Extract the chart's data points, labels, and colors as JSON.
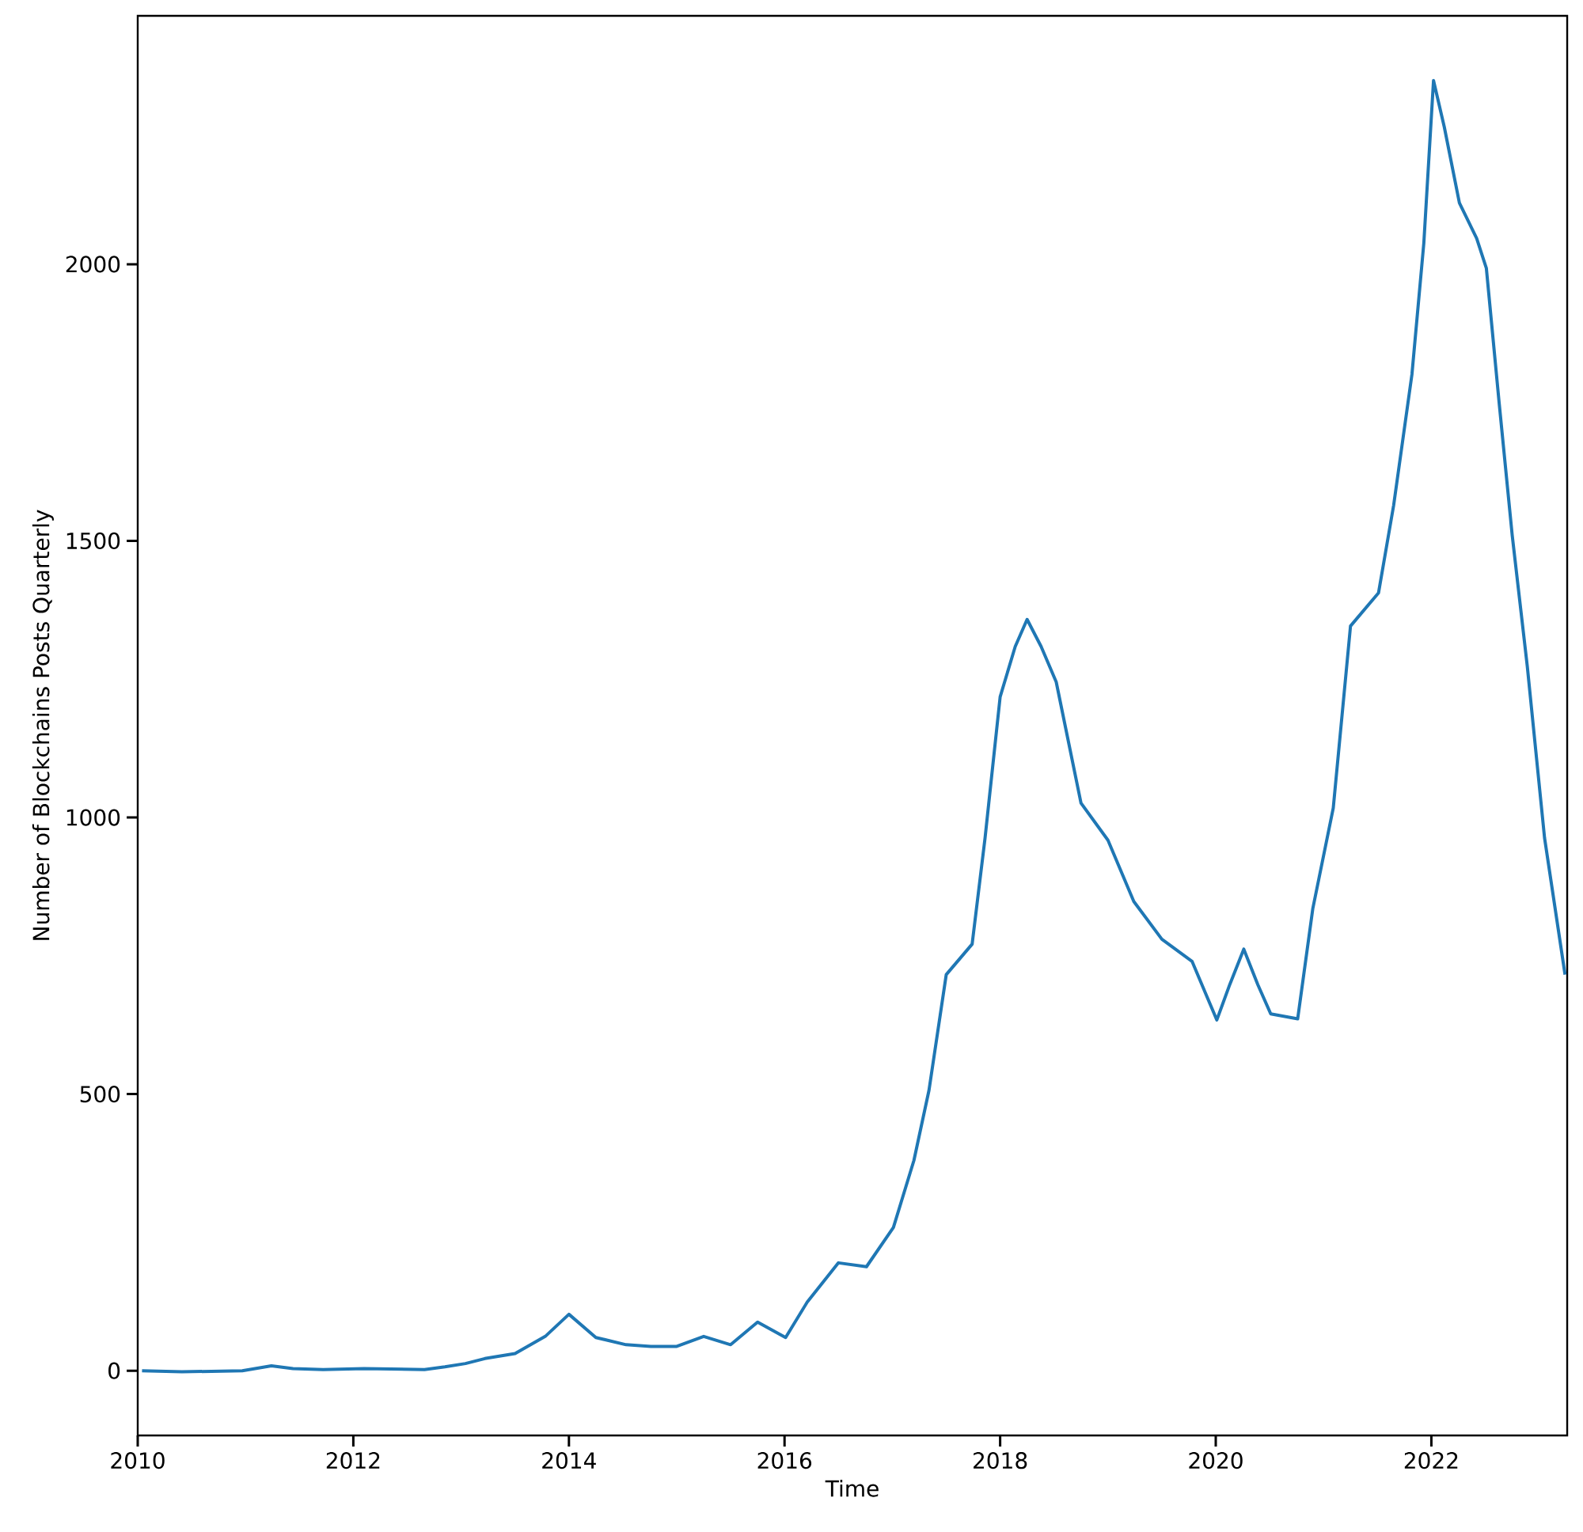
{
  "chart_data": {
    "type": "line",
    "xlabel": "Time",
    "ylabel": "Number of Blockchains Posts Quarterly",
    "color": "#1f77b4",
    "x": [
      2010.04,
      2010.41,
      2010.97,
      2011.24,
      2011.44,
      2011.72,
      2012.1,
      2012.66,
      2012.85,
      2013.04,
      2013.22,
      2013.5,
      2013.78,
      2014.0,
      2014.25,
      2014.53,
      2014.76,
      2015.0,
      2015.25,
      2015.5,
      2015.75,
      2016.01,
      2016.21,
      2016.5,
      2016.76,
      2017.01,
      2017.2,
      2017.34,
      2017.5,
      2017.74,
      2017.86,
      2018.0,
      2018.14,
      2018.25,
      2018.38,
      2018.52,
      2018.75,
      2019.0,
      2019.24,
      2019.5,
      2019.78,
      2020.01,
      2020.13,
      2020.26,
      2020.39,
      2020.51,
      2020.76,
      2020.9,
      2021.09,
      2021.25,
      2021.51,
      2021.65,
      2021.82,
      2021.93,
      2022.02,
      2022.12,
      2022.26,
      2022.42,
      2022.51,
      2022.63,
      2022.75,
      2022.89,
      2023.05,
      2023.24
    ],
    "values": [
      0,
      -2,
      0,
      9,
      4,
      2,
      4,
      2,
      7,
      13,
      22,
      31,
      62,
      102,
      60,
      47,
      44,
      44,
      62,
      47,
      88,
      60,
      124,
      195,
      188,
      259,
      380,
      507,
      716,
      771,
      963,
      1218,
      1309,
      1358,
      1309,
      1245,
      1026,
      959,
      848,
      780,
      740,
      634,
      698,
      762,
      698,
      645,
      636,
      835,
      1017,
      1346,
      1406,
      1564,
      1801,
      2038,
      2332,
      2248,
      2111,
      2047,
      1993,
      1747,
      1510,
      1273,
      963,
      716
    ],
    "xlim": [
      2010,
      2023.26
    ],
    "ylim": [
      -117,
      2449
    ],
    "xticks": [
      2010,
      2012,
      2014,
      2016,
      2018,
      2020,
      2022
    ],
    "yticks": [
      0,
      500,
      1000,
      1500,
      2000
    ]
  }
}
